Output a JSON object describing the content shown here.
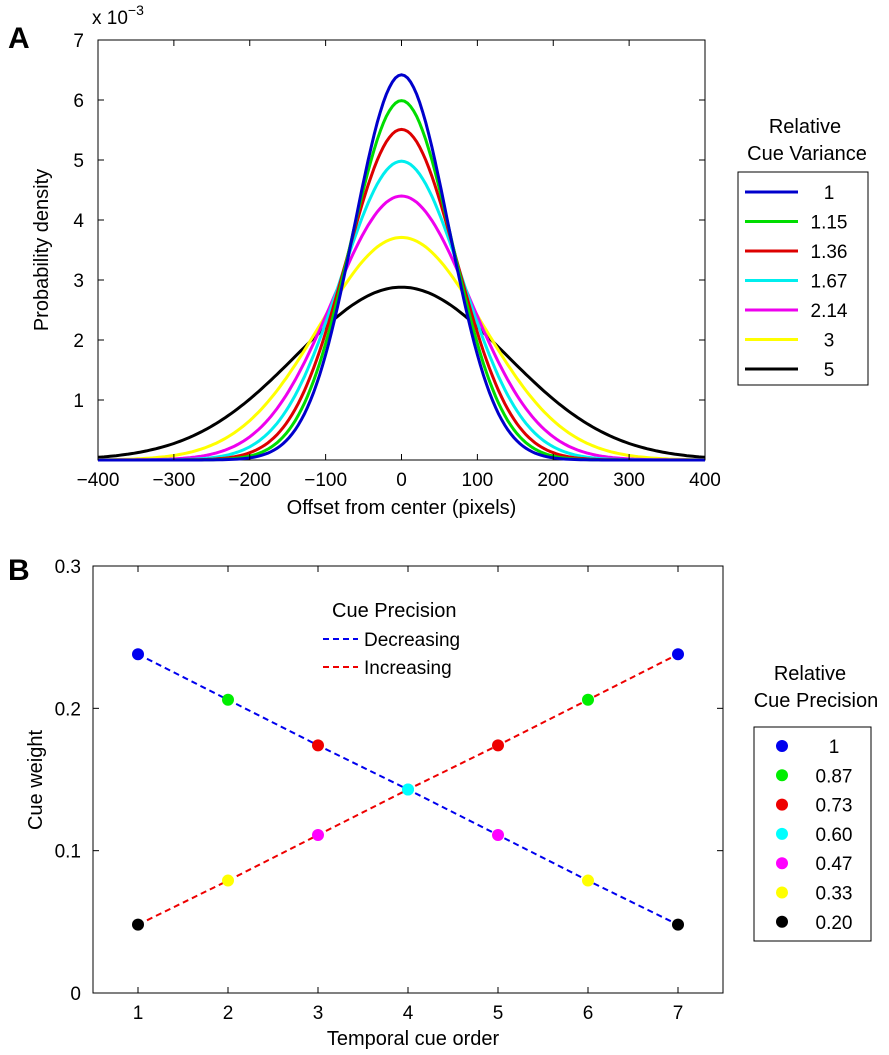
{
  "chart_data": [
    {
      "panel": "A",
      "type": "line",
      "xlabel": "Offset from center (pixels)",
      "ylabel": "Probability density",
      "y_exponent_label": "x 10",
      "y_exponent_power": "−3",
      "xlim": [
        -400,
        400
      ],
      "ylim": [
        0,
        7
      ],
      "xticks": [
        -400,
        -300,
        -200,
        -100,
        0,
        100,
        200,
        300,
        400
      ],
      "xtick_labels": [
        "−400",
        "−300",
        "−200",
        "−100",
        "0",
        "100",
        "200",
        "300",
        "400"
      ],
      "yticks": [
        1,
        2,
        3,
        4,
        5,
        6,
        7
      ],
      "ytick_labels": [
        "1",
        "2",
        "3",
        "4",
        "5",
        "6",
        "7"
      ],
      "grid": false,
      "legend": {
        "title_line1": "Relative",
        "title_line2": "Cue Variance",
        "placement": "outside-right"
      },
      "series": [
        {
          "name": "1",
          "color": "#0000cc",
          "peak": 6.42,
          "sigma": 62.1
        },
        {
          "name": "1.15",
          "color": "#00dd00",
          "peak": 5.99,
          "sigma": 66.6
        },
        {
          "name": "1.36",
          "color": "#dd0000",
          "peak": 5.51,
          "sigma": 72.4
        },
        {
          "name": "1.67",
          "color": "#00eeee",
          "peak": 4.98,
          "sigma": 80.1
        },
        {
          "name": "2.14",
          "color": "#ee00ee",
          "peak": 4.4,
          "sigma": 90.7
        },
        {
          "name": "3",
          "color": "#ffff00",
          "peak": 3.71,
          "sigma": 107.5
        },
        {
          "name": "5",
          "color": "#000000",
          "peak": 2.88,
          "sigma": 138.5
        }
      ]
    },
    {
      "panel": "B",
      "type": "scatter",
      "xlabel": "Temporal cue order",
      "ylabel": "Cue weight",
      "xlim": [
        0.5,
        7.5
      ],
      "ylim": [
        0,
        0.3
      ],
      "xticks": [
        1,
        2,
        3,
        4,
        5,
        6,
        7
      ],
      "xtick_labels": [
        "1",
        "2",
        "3",
        "4",
        "5",
        "6",
        "7"
      ],
      "yticks": [
        0,
        0.1,
        0.2,
        0.3
      ],
      "ytick_labels": [
        "0",
        "0.1",
        "0.2",
        "0.3"
      ],
      "grid": false,
      "inner_legend": {
        "title": "Cue Precision",
        "placement": "top-center",
        "items": [
          {
            "label": "Decreasing",
            "color": "#0000ee",
            "style": "dashed"
          },
          {
            "label": "Increasing",
            "color": "#ee0000",
            "style": "dashed"
          }
        ]
      },
      "legend": {
        "title_line1": "Relative",
        "title_line2": "Cue Precision",
        "placement": "outside-right",
        "items": [
          {
            "label": "1",
            "color": "#0000ee"
          },
          {
            "label": "0.87",
            "color": "#00ee00"
          },
          {
            "label": "0.73",
            "color": "#ee0000"
          },
          {
            "label": "0.60",
            "color": "#00ffff"
          },
          {
            "label": "0.47",
            "color": "#ff00ff"
          },
          {
            "label": "0.33",
            "color": "#ffff00"
          },
          {
            "label": "0.20",
            "color": "#000000"
          }
        ]
      },
      "series": [
        {
          "name": "Decreasing",
          "color": "#0000ee",
          "x": [
            1,
            2,
            3,
            4,
            5,
            6,
            7
          ],
          "y": [
            0.238,
            0.206,
            0.174,
            0.143,
            0.111,
            0.079,
            0.048
          ],
          "point_colors": [
            "#0000ee",
            "#00ee00",
            "#ee0000",
            "#00ffff",
            "#ff00ff",
            "#ffff00",
            "#000000"
          ]
        },
        {
          "name": "Increasing",
          "color": "#ee0000",
          "x": [
            1,
            2,
            3,
            4,
            5,
            6,
            7
          ],
          "y": [
            0.048,
            0.079,
            0.111,
            0.143,
            0.174,
            0.206,
            0.238
          ],
          "point_colors": [
            "#000000",
            "#ffff00",
            "#ff00ff",
            "#00ffff",
            "#ee0000",
            "#00ee00",
            "#0000ee"
          ]
        }
      ]
    }
  ]
}
